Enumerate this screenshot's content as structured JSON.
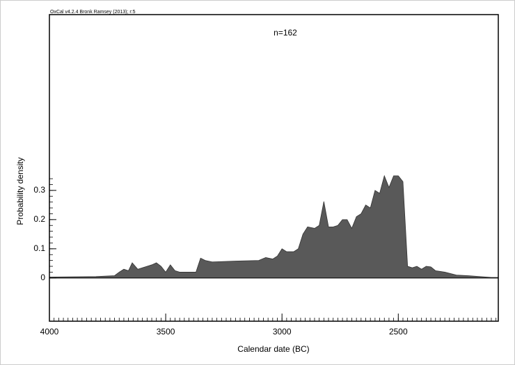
{
  "chart_data": {
    "type": "area",
    "credit": "OxCal v4.2.4 Bronk Ramsey (2013); r:5",
    "title": "n=162",
    "x_label": "Calendar date (BC)",
    "y_label": "Probability density",
    "color": "#595959",
    "xlim": [
      4000,
      2070
    ],
    "xticks": [
      4000,
      3500,
      3000,
      2500
    ],
    "ylim": [
      -0.148,
      0.902
    ],
    "yticks": [
      0,
      0.1,
      0.2,
      0.3
    ],
    "x": [
      4000,
      3800,
      3720,
      3700,
      3680,
      3660,
      3644,
      3620,
      3600,
      3560,
      3540,
      3520,
      3500,
      3480,
      3460,
      3440,
      3400,
      3370,
      3350,
      3330,
      3300,
      3200,
      3100,
      3070,
      3040,
      3020,
      3000,
      2980,
      2950,
      2930,
      2910,
      2890,
      2860,
      2840,
      2820,
      2800,
      2780,
      2760,
      2740,
      2720,
      2700,
      2680,
      2660,
      2640,
      2620,
      2600,
      2580,
      2560,
      2540,
      2520,
      2500,
      2480,
      2460,
      2440,
      2420,
      2400,
      2380,
      2360,
      2340,
      2300,
      2250,
      2200,
      2150,
      2100,
      2070
    ],
    "values": [
      0.003,
      0.005,
      0.008,
      0.02,
      0.03,
      0.025,
      0.052,
      0.03,
      0.035,
      0.045,
      0.052,
      0.04,
      0.02,
      0.045,
      0.025,
      0.02,
      0.02,
      0.02,
      0.068,
      0.06,
      0.055,
      0.058,
      0.06,
      0.07,
      0.065,
      0.075,
      0.1,
      0.09,
      0.09,
      0.1,
      0.15,
      0.175,
      0.17,
      0.18,
      0.262,
      0.175,
      0.175,
      0.18,
      0.2,
      0.2,
      0.17,
      0.21,
      0.22,
      0.25,
      0.24,
      0.3,
      0.29,
      0.35,
      0.31,
      0.35,
      0.35,
      0.33,
      0.04,
      0.035,
      0.04,
      0.03,
      0.04,
      0.038,
      0.025,
      0.02,
      0.01,
      0.008,
      0.005,
      0.002,
      0.002
    ]
  }
}
